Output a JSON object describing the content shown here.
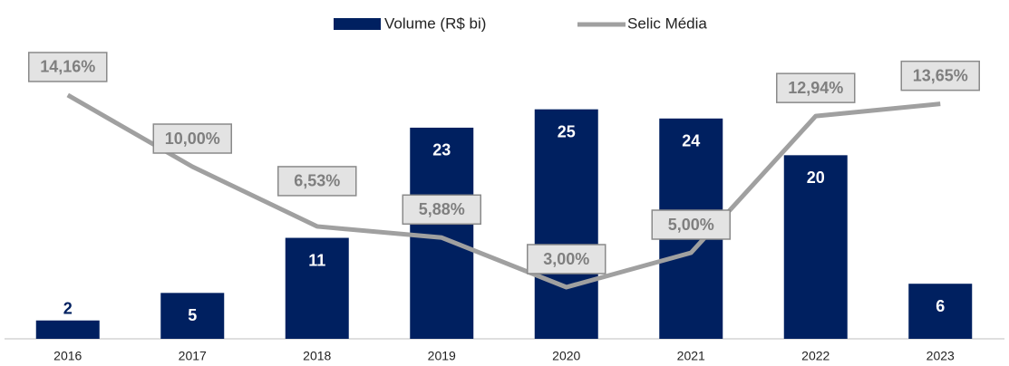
{
  "chart_data": {
    "type": "bar-line",
    "categories": [
      "2016",
      "2017",
      "2018",
      "2019",
      "2020",
      "2021",
      "2022",
      "2023"
    ],
    "series": [
      {
        "name": "Volume (R$ bi)",
        "type": "bar",
        "color": "#002060",
        "values": [
          2,
          5,
          11,
          23,
          25,
          24,
          20,
          6
        ]
      },
      {
        "name": "Selic Média",
        "type": "line",
        "axis": "y2",
        "color": "#a0a0a0",
        "values": [
          14.16,
          10.0,
          6.53,
          5.88,
          3.0,
          5.0,
          12.94,
          13.65
        ],
        "value_labels": [
          "14,16%",
          "10,00%",
          "6,53%",
          "5,88%",
          "3,00%",
          "5,00%",
          "12,94%",
          "13,65%"
        ]
      }
    ],
    "ylim": [
      0,
      30
    ],
    "y2lim": [
      0,
      16
    ],
    "legend": "top"
  }
}
